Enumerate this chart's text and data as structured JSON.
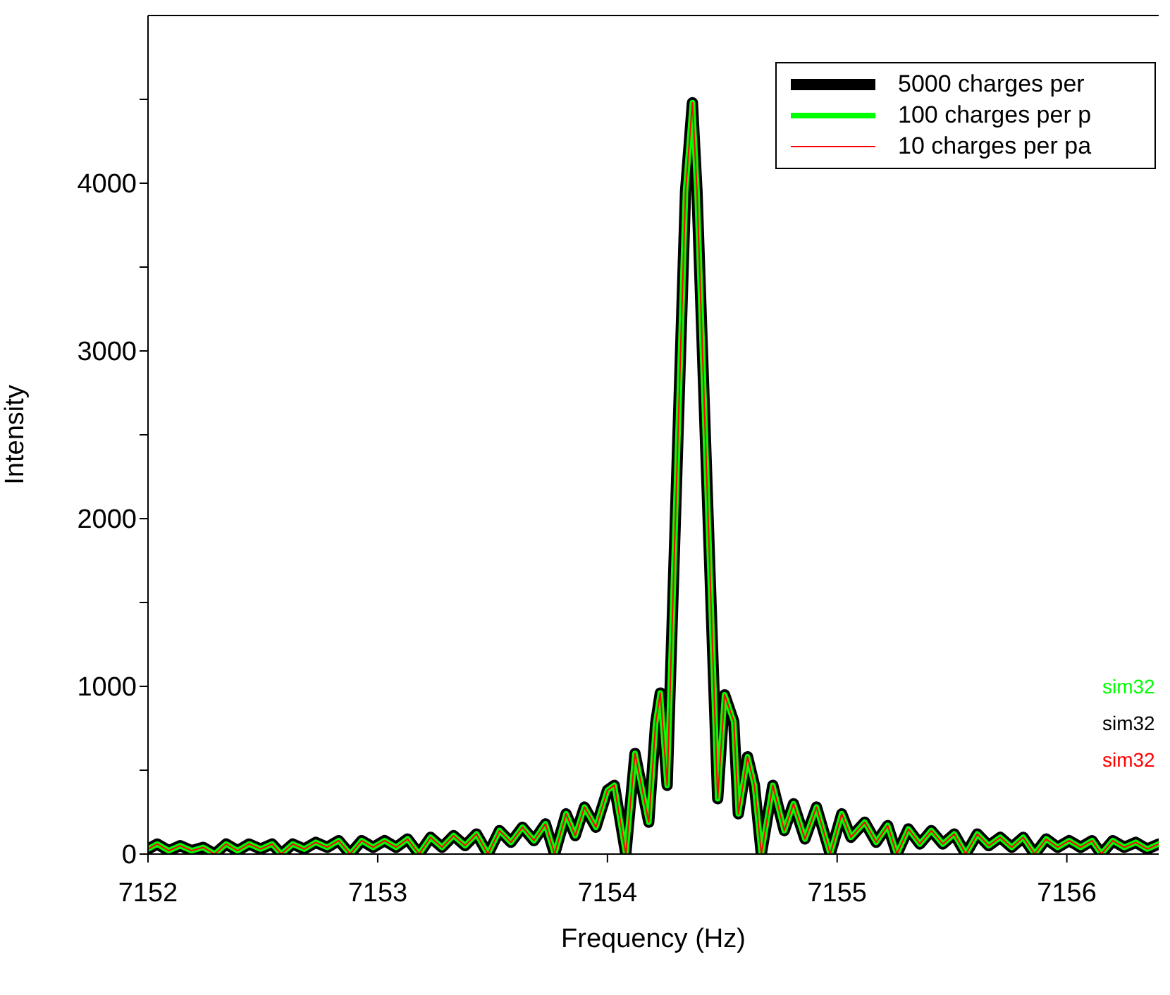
{
  "chart_data": {
    "type": "line",
    "xlabel": "Frequency (Hz)",
    "ylabel": "Intensity",
    "x": [
      7152.0,
      7152.04,
      7152.09,
      7152.14,
      7152.19,
      7152.24,
      7152.29,
      7152.34,
      7152.39,
      7152.44,
      7152.49,
      7152.54,
      7152.58,
      7152.63,
      7152.68,
      7152.73,
      7152.78,
      7152.83,
      7152.88,
      7152.93,
      7152.98,
      7153.03,
      7153.08,
      7153.13,
      7153.18,
      7153.23,
      7153.28,
      7153.33,
      7153.38,
      7153.43,
      7153.48,
      7153.53,
      7153.58,
      7153.63,
      7153.68,
      7153.73,
      7153.77,
      7153.82,
      7153.86,
      7153.9,
      7153.95,
      7154.0,
      7154.03,
      7154.08,
      7154.12,
      7154.18,
      7154.21,
      7154.23,
      7154.26,
      7154.34,
      7154.37,
      7154.39,
      7154.48,
      7154.51,
      7154.55,
      7154.57,
      7154.61,
      7154.64,
      7154.67,
      7154.72,
      7154.77,
      7154.81,
      7154.86,
      7154.91,
      7154.97,
      7155.02,
      7155.06,
      7155.12,
      7155.17,
      7155.22,
      7155.26,
      7155.31,
      7155.36,
      7155.41,
      7155.46,
      7155.51,
      7155.56,
      7155.61,
      7155.66,
      7155.71,
      7155.76,
      7155.81,
      7155.86,
      7155.91,
      7155.96,
      7156.01,
      7156.06,
      7156.11,
      7156.15,
      7156.2,
      7156.25,
      7156.3,
      7156.35,
      7156.4
    ],
    "series": [
      {
        "name": "5000 charges per",
        "color": "#000000",
        "values": [
          30,
          60,
          20,
          50,
          20,
          40,
          0,
          60,
          20,
          60,
          30,
          60,
          0,
          60,
          30,
          70,
          40,
          80,
          0,
          80,
          40,
          80,
          40,
          90,
          0,
          100,
          40,
          110,
          50,
          120,
          0,
          140,
          70,
          160,
          80,
          180,
          0,
          240,
          110,
          280,
          160,
          380,
          410,
          0,
          600,
          190,
          780,
          960,
          410,
          3950,
          4480,
          3950,
          330,
          950,
          790,
          240,
          580,
          410,
          0,
          410,
          140,
          300,
          90,
          280,
          0,
          240,
          100,
          190,
          70,
          170,
          0,
          150,
          60,
          140,
          60,
          120,
          0,
          120,
          50,
          100,
          40,
          100,
          0,
          90,
          40,
          80,
          40,
          80,
          0,
          80,
          40,
          70,
          30,
          60
        ]
      },
      {
        "name": "100 charges per p",
        "color": "#00ff00",
        "values": [
          30,
          60,
          20,
          50,
          20,
          40,
          0,
          60,
          20,
          60,
          30,
          60,
          0,
          60,
          30,
          70,
          40,
          80,
          0,
          80,
          40,
          80,
          40,
          90,
          0,
          100,
          40,
          110,
          50,
          120,
          0,
          140,
          70,
          160,
          80,
          180,
          0,
          240,
          110,
          280,
          160,
          380,
          410,
          0,
          600,
          190,
          780,
          960,
          410,
          3950,
          4480,
          3950,
          330,
          950,
          790,
          240,
          580,
          410,
          0,
          410,
          140,
          300,
          90,
          280,
          0,
          240,
          100,
          190,
          70,
          170,
          0,
          150,
          60,
          140,
          60,
          120,
          0,
          120,
          50,
          100,
          40,
          100,
          0,
          90,
          40,
          80,
          40,
          80,
          0,
          80,
          40,
          70,
          30,
          60
        ]
      },
      {
        "name": "10 charges per pa",
        "color": "#ff0000",
        "values": [
          30,
          60,
          20,
          50,
          20,
          40,
          0,
          60,
          20,
          60,
          30,
          60,
          0,
          60,
          30,
          70,
          40,
          80,
          0,
          80,
          40,
          80,
          40,
          90,
          0,
          100,
          40,
          110,
          50,
          120,
          0,
          140,
          70,
          160,
          80,
          180,
          0,
          240,
          110,
          280,
          160,
          380,
          410,
          0,
          600,
          190,
          780,
          960,
          410,
          3950,
          4480,
          3950,
          330,
          950,
          790,
          240,
          580,
          410,
          0,
          410,
          140,
          300,
          90,
          280,
          0,
          240,
          100,
          190,
          70,
          170,
          0,
          150,
          60,
          140,
          60,
          120,
          0,
          120,
          50,
          100,
          40,
          100,
          0,
          90,
          40,
          80,
          40,
          80,
          0,
          80,
          40,
          70,
          30,
          60
        ]
      }
    ],
    "annotations": [
      "sim32",
      "sim32",
      "sim32"
    ],
    "xlim": [
      7152,
      7156.4
    ],
    "xticks": [
      7152,
      7153,
      7154,
      7155,
      7156
    ],
    "ylim": [
      0,
      5000
    ],
    "yticks": [
      0,
      {
        "value": 500,
        "label": null
      },
      1000,
      {
        "value": 1500,
        "label": null
      },
      2000,
      {
        "value": 2500,
        "label": null
      },
      3000,
      {
        "value": 3500,
        "label": null
      },
      4000,
      {
        "value": 4500,
        "label": null
      }
    ],
    "legend": "top right",
    "marker": "none",
    "line_style": "solid"
  }
}
